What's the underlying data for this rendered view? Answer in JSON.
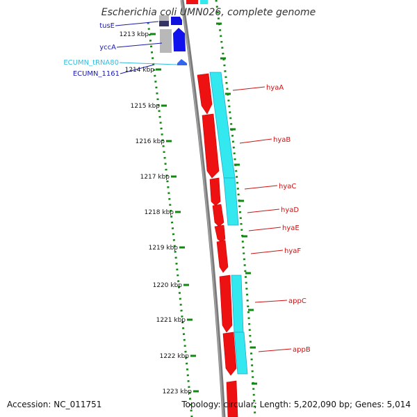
{
  "title": "Escherichia coli UMN026, complete genome",
  "footer": {
    "accession": "Accession: NC_011751",
    "summary": "Topology: circular; Length: 5,202,090 bp; Genes: 5,014"
  },
  "colors": {
    "forward_gene": "#ee1111",
    "cds_track": "#33e8ee",
    "reverse_gene": "#1111dd",
    "pseudo_gene": "#b8b8b8",
    "trna": "#33ccee",
    "backbone": "#7a7a7a",
    "ruler": "#118811",
    "gene_label": "#cc1111",
    "reverse_label": "#1a1aaa",
    "trna_label": "#33bbdd"
  },
  "ruler_ticks": [
    "1213 kbp",
    "1214 kbp",
    "1215 kbp",
    "1216 kbp",
    "1217 kbp",
    "1218 kbp",
    "1219 kbp",
    "1220 kbp",
    "1221 kbp",
    "1222 kbp",
    "1223 kbp"
  ],
  "labels_left": [
    {
      "text": "tusE",
      "kind": "reverse"
    },
    {
      "text": "yccA",
      "kind": "reverse"
    },
    {
      "text": "ECUMN_tRNA80",
      "kind": "trna"
    },
    {
      "text": "ECUMN_1161",
      "kind": "reverse"
    }
  ],
  "labels_right": [
    "hyaA",
    "hyaB",
    "hyaC",
    "hyaD",
    "hyaE",
    "hyaF",
    "appC",
    "appB"
  ]
}
